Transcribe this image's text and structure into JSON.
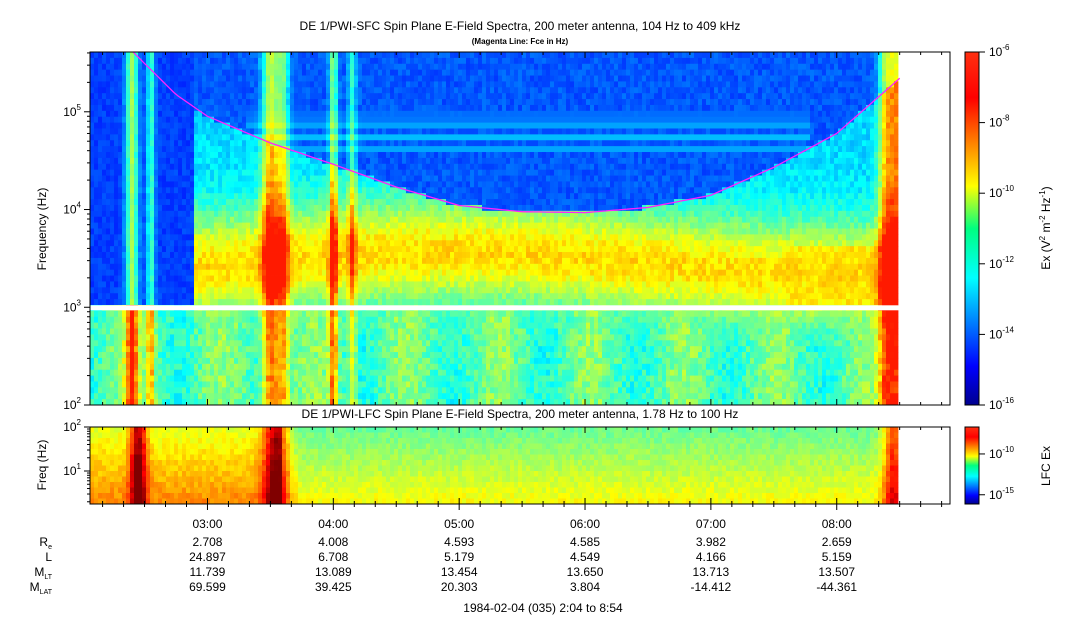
{
  "panels": [
    {
      "title": "DE 1/PWI-SFC  Spin Plane E-Field Spectra, 200 meter antenna, 104 Hz to 409 kHz",
      "subtitle": "(Magenta Line: Fce in Hz)",
      "ylabel": "Frequency (Hz)",
      "yticks": [
        {
          "base": "10",
          "exp": "5"
        },
        {
          "base": "10",
          "exp": "4"
        },
        {
          "base": "10",
          "exp": "3"
        },
        {
          "base": "10",
          "exp": "2"
        }
      ],
      "colorbar": {
        "label": "Ex (V",
        "label_sup1": "2",
        "label_mid": " m",
        "label_sup2": "-2",
        "label_mid2": " Hz",
        "label_sup3": "-1",
        "label_end": ")",
        "ticks": [
          {
            "base": "10",
            "exp": "-6"
          },
          {
            "base": "10",
            "exp": "-8"
          },
          {
            "base": "10",
            "exp": "-10"
          },
          {
            "base": "10",
            "exp": "-12"
          },
          {
            "base": "10",
            "exp": "-14"
          },
          {
            "base": "10",
            "exp": "-16"
          }
        ]
      }
    },
    {
      "title": "DE 1/PWI-LFC  Spin Plane E-Field Spectra, 200 meter antenna, 1.78 Hz to 100 Hz",
      "ylabel": "Freq (Hz)",
      "yticks": [
        {
          "base": "10",
          "exp": "2"
        },
        {
          "base": "10",
          "exp": "1"
        }
      ],
      "colorbar": {
        "label": "LFC Ex",
        "ticks": [
          {
            "base": "10",
            "exp": "-10"
          },
          {
            "base": "10",
            "exp": "-15"
          }
        ]
      }
    }
  ],
  "xaxis": {
    "ticks": [
      "03:00",
      "04:00",
      "05:00",
      "06:00",
      "07:00",
      "08:00"
    ],
    "footer": "1984-02-04 (035) 2:04 to 8:54"
  },
  "ephemeris": [
    {
      "label": "R",
      "sub": "e",
      "values": [
        "2.708",
        "4.008",
        "4.593",
        "4.585",
        "3.982",
        "2.659"
      ]
    },
    {
      "label": "L",
      "sub": "",
      "values": [
        "24.897",
        "6.708",
        "5.179",
        "4.549",
        "4.166",
        "5.159"
      ]
    },
    {
      "label": "M",
      "sub": "LT",
      "values": [
        "11.739",
        "13.089",
        "13.454",
        "13.650",
        "13.713",
        "13.507"
      ]
    },
    {
      "label": "M",
      "sub": "LAT",
      "values": [
        "69.599",
        "39.425",
        "20.303",
        "3.804",
        "-14.412",
        "-44.361"
      ]
    }
  ],
  "chart_data": [
    {
      "type": "heatmap",
      "title": "DE 1/PWI-SFC  Spin Plane E-Field Spectra, 200 meter antenna, 104 Hz to 409 kHz",
      "subtitle": "(Magenta Line: Fce in Hz)",
      "xlabel": "",
      "ylabel": "Frequency (Hz)",
      "y_scale": "log",
      "ylim": [
        100,
        409000
      ],
      "xlim": [
        "02:04",
        "08:54"
      ],
      "colorscale": "jet",
      "color_range": [
        1e-16,
        1e-06
      ],
      "color_scale": "log",
      "colorbar_label": "Ex (V2 m-2 Hz-1)",
      "data_gap_hz": 1000,
      "series": [
        {
          "name": "Fce",
          "color": "#ff22ff",
          "x": [
            "02:24",
            "02:45",
            "03:00",
            "03:30",
            "04:00",
            "04:30",
            "05:00",
            "05:30",
            "06:00",
            "06:30",
            "07:00",
            "07:30",
            "08:00",
            "08:30"
          ],
          "y": [
            420000,
            150000,
            90000,
            48000,
            29000,
            17000,
            11000,
            9500,
            9300,
            10500,
            14000,
            27000,
            60000,
            220000
          ]
        }
      ]
    },
    {
      "type": "heatmap",
      "title": "DE 1/PWI-LFC  Spin Plane E-Field Spectra, 200 meter antenna, 1.78 Hz to 100 Hz",
      "xlabel": "",
      "ylabel": "Freq (Hz)",
      "y_scale": "log",
      "ylim": [
        1.78,
        100
      ],
      "xlim": [
        "02:04",
        "08:54"
      ],
      "colorscale": "jet",
      "color_scale": "log",
      "colorbar_label": "LFC Ex"
    }
  ],
  "colors": {
    "fce_line": "#ff22ff",
    "data_gap": "#ffffff",
    "frame": "#000000"
  }
}
